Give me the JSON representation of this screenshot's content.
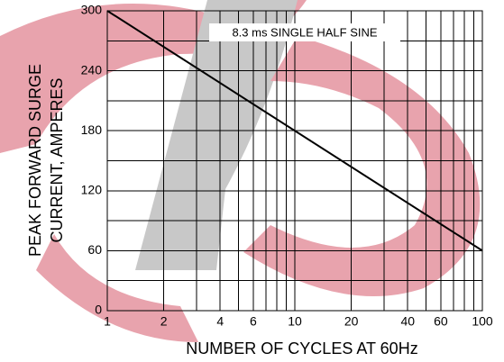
{
  "chart_data": {
    "type": "line",
    "scale_x": "log",
    "annotation": "8.3 ms SINGLE HALF SINE",
    "x_label": "NUMBER OF CYCLES AT 60Hz",
    "y_label": [
      "PEAK FORWARD SURGE",
      "CURRENT, AMPERES"
    ],
    "x": [
      1,
      100
    ],
    "values": [
      300,
      60
    ],
    "color": "#000000",
    "xlim": [
      1,
      100
    ],
    "xticks": [
      1,
      2,
      4,
      6,
      10,
      20,
      40,
      60,
      100
    ],
    "ylim": [
      0,
      300
    ],
    "yticks": [
      0,
      60,
      120,
      180,
      240,
      300
    ],
    "grid": true
  }
}
